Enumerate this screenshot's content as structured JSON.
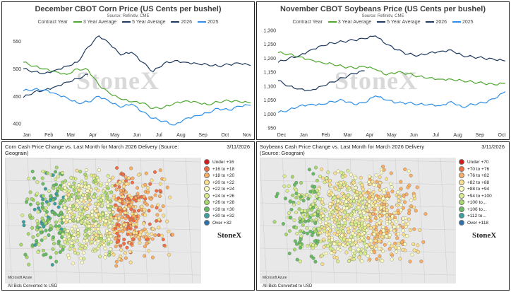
{
  "chart_data": [
    {
      "type": "line",
      "title": "December CBOT Corn Price (US Cents per bushel)",
      "subtitle": "Source: Refinitiv, CME",
      "legend_title": "Contract Year",
      "x_tick_labels": [
        "Jan",
        "Feb",
        "Mar",
        "Apr",
        "May",
        "Jun",
        "Jul",
        "Aug",
        "Sep",
        "Oct",
        "Nov"
      ],
      "ylim": [
        390,
        575
      ],
      "y_ticks": [
        400,
        450,
        500,
        550
      ],
      "watermark": "StoneX",
      "series": [
        {
          "name": "3 Year Average",
          "color": "#4ea72e",
          "values": [
            512,
            505,
            500,
            495,
            490,
            500,
            498,
            470,
            455,
            445,
            440,
            438,
            428,
            430,
            438,
            442,
            440,
            435,
            440,
            442,
            440,
            438
          ]
        },
        {
          "name": "5 Year Average",
          "color": "#1f3a60",
          "values": [
            500,
            495,
            492,
            498,
            505,
            512,
            540,
            560,
            545,
            525,
            530,
            512,
            495,
            510,
            515,
            512,
            510,
            508,
            505,
            508,
            510,
            506
          ]
        },
        {
          "name": "2026",
          "color": "#1f3a60",
          "values": [
            448,
            458,
            462,
            468,
            476,
            482,
            490
          ]
        },
        {
          "name": "2025",
          "color": "#2e8fe8",
          "values": [
            460,
            463,
            462,
            455,
            448,
            438,
            440,
            450,
            440,
            430,
            436,
            422,
            410,
            405,
            398,
            410,
            415,
            420,
            428,
            425,
            432,
            434
          ]
        }
      ]
    },
    {
      "type": "line",
      "title": "November CBOT Soybeans Price (US Cents per bushel)",
      "subtitle": "Source: Refinitiv, CME",
      "legend_title": "Contract Year",
      "x_tick_labels": [
        "Dec",
        "Jan",
        "Feb",
        "Mar",
        "Apr",
        "May",
        "Jun",
        "Jul",
        "Aug",
        "Sep",
        "Oct"
      ],
      "ylim": [
        945,
        1310
      ],
      "y_ticks": [
        950,
        1000,
        1050,
        1100,
        1150,
        1200,
        1250,
        1300
      ],
      "watermark": "StoneX",
      "series": [
        {
          "name": "3 Year Average",
          "color": "#4ea72e",
          "values": [
            1220,
            1215,
            1205,
            1195,
            1185,
            1180,
            1170,
            1165,
            1170,
            1160,
            1140,
            1150,
            1145,
            1135,
            1130,
            1125,
            1125,
            1120,
            1115,
            1110,
            1105,
            1110
          ]
        },
        {
          "name": "5 Year Average",
          "color": "#1f3a60",
          "values": [
            1185,
            1200,
            1210,
            1230,
            1245,
            1255,
            1260,
            1265,
            1270,
            1280,
            1250,
            1230,
            1215,
            1210,
            1220,
            1225,
            1230,
            1210,
            1205,
            1200,
            1195,
            1190
          ]
        },
        {
          "name": "2026",
          "color": "#1f3a60",
          "values": [
            1120,
            1100,
            1090,
            1085,
            1100,
            1115,
            1130,
            1145,
            1155
          ]
        },
        {
          "name": "2025",
          "color": "#2e8fe8",
          "values": [
            1005,
            1015,
            1030,
            1035,
            1035,
            1045,
            1050,
            1035,
            1040,
            1065,
            1050,
            1040,
            1040,
            1035,
            1035,
            1030,
            1045,
            1025,
            1035,
            1040,
            1055,
            1080
          ]
        }
      ]
    }
  ],
  "maps": [
    {
      "title": "Corn Cash Price Change vs. Last Month for March 2026 Delivery (Source: Geograin)",
      "date": "3/11/2026",
      "footer": "All Bids Converted to USD",
      "brand": "StoneX",
      "basemap_label": "Microsoft Azure",
      "legend": [
        {
          "label": "Under +16",
          "color": "#d7191c"
        },
        {
          "label": "+16 to +18",
          "color": "#f46d43"
        },
        {
          "label": "+18 to +20",
          "color": "#fdae61"
        },
        {
          "label": "+20 to +22",
          "color": "#fee08b"
        },
        {
          "label": "+22 to +24",
          "color": "#ffffbf"
        },
        {
          "label": "+24 to +26",
          "color": "#d9ef8b"
        },
        {
          "label": "+26 to +28",
          "color": "#a6d96a"
        },
        {
          "label": "+28 to +30",
          "color": "#66bd63"
        },
        {
          "label": "+30 to +32",
          "color": "#3aa0a0"
        },
        {
          "label": "Over +32",
          "color": "#2c6fb0"
        }
      ]
    },
    {
      "title": "Soybeans Cash Price Change vs. Last Month for March 2026 Delivery (Source: Geograin)",
      "date": "3/11/2026",
      "footer": "All Bids Converted to USD",
      "brand": "StoneX",
      "basemap_label": "Microsoft Azure",
      "legend": [
        {
          "label": "Under +70",
          "color": "#d7191c"
        },
        {
          "label": "+70 to +76",
          "color": "#f46d43"
        },
        {
          "label": "+76 to +82",
          "color": "#fdae61"
        },
        {
          "label": "+82 to +88",
          "color": "#fee08b"
        },
        {
          "label": "+88 to +94",
          "color": "#ffffbf"
        },
        {
          "label": "+94 to +100",
          "color": "#d9ef8b"
        },
        {
          "label": "+100 to...",
          "color": "#a6d96a"
        },
        {
          "label": "+106 to...",
          "color": "#66bd63"
        },
        {
          "label": "+112 to...",
          "color": "#3aa0a0"
        },
        {
          "label": "Over +118",
          "color": "#2c6fb0"
        }
      ]
    }
  ]
}
